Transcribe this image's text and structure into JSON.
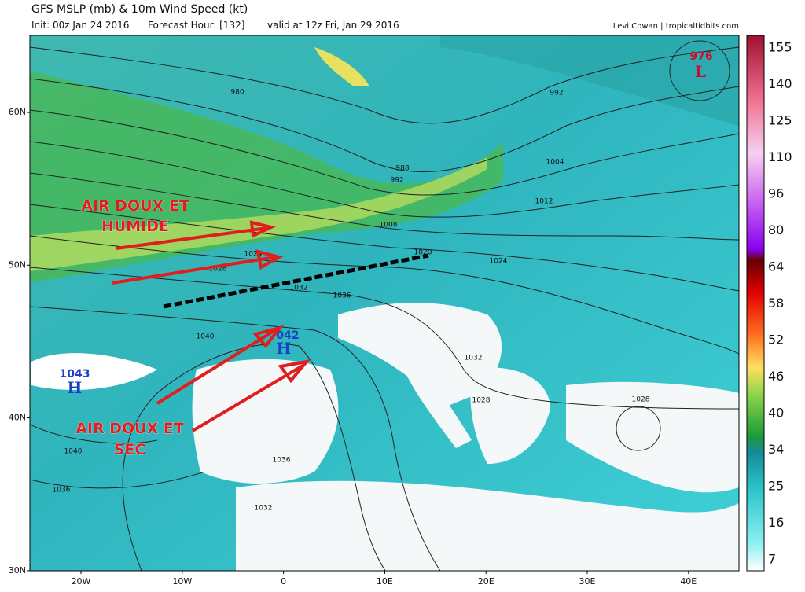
{
  "header": {
    "title": "GFS MSLP (mb) & 10m Wind Speed (kt)",
    "init": "Init: 00z Jan 24 2016",
    "forecast": "Forecast Hour: [132]",
    "valid": "valid at 12z Fri, Jan 29 2016",
    "credit": "Levi Cowan | tropicaltidbits.com"
  },
  "map": {
    "lat_labels": [
      "60N",
      "50N",
      "40N",
      "30N"
    ],
    "lon_labels": [
      "20W",
      "10W",
      "0",
      "10E",
      "20E",
      "30E",
      "40E"
    ],
    "isobar_labels": [
      "980",
      "992",
      "988",
      "992",
      "1004",
      "1012",
      "1008",
      "1020",
      "1024",
      "1028",
      "1024",
      "1032",
      "1036",
      "1040",
      "1032",
      "1028",
      "1028",
      "1040",
      "1036",
      "1036",
      "1032"
    ],
    "centers": [
      {
        "value": "1043",
        "symbol": "H"
      },
      {
        "value": "042",
        "symbol": "H"
      },
      {
        "value": "976",
        "symbol": "L"
      }
    ],
    "annotations": [
      [
        "AIR DOUX ET",
        "HUMIDE"
      ],
      [
        "AIR DOUX ET",
        "SEC"
      ]
    ]
  },
  "colorbar": {
    "labels": [
      155,
      140,
      125,
      110,
      96,
      80,
      64,
      58,
      52,
      46,
      40,
      34,
      25,
      16,
      7
    ]
  }
}
